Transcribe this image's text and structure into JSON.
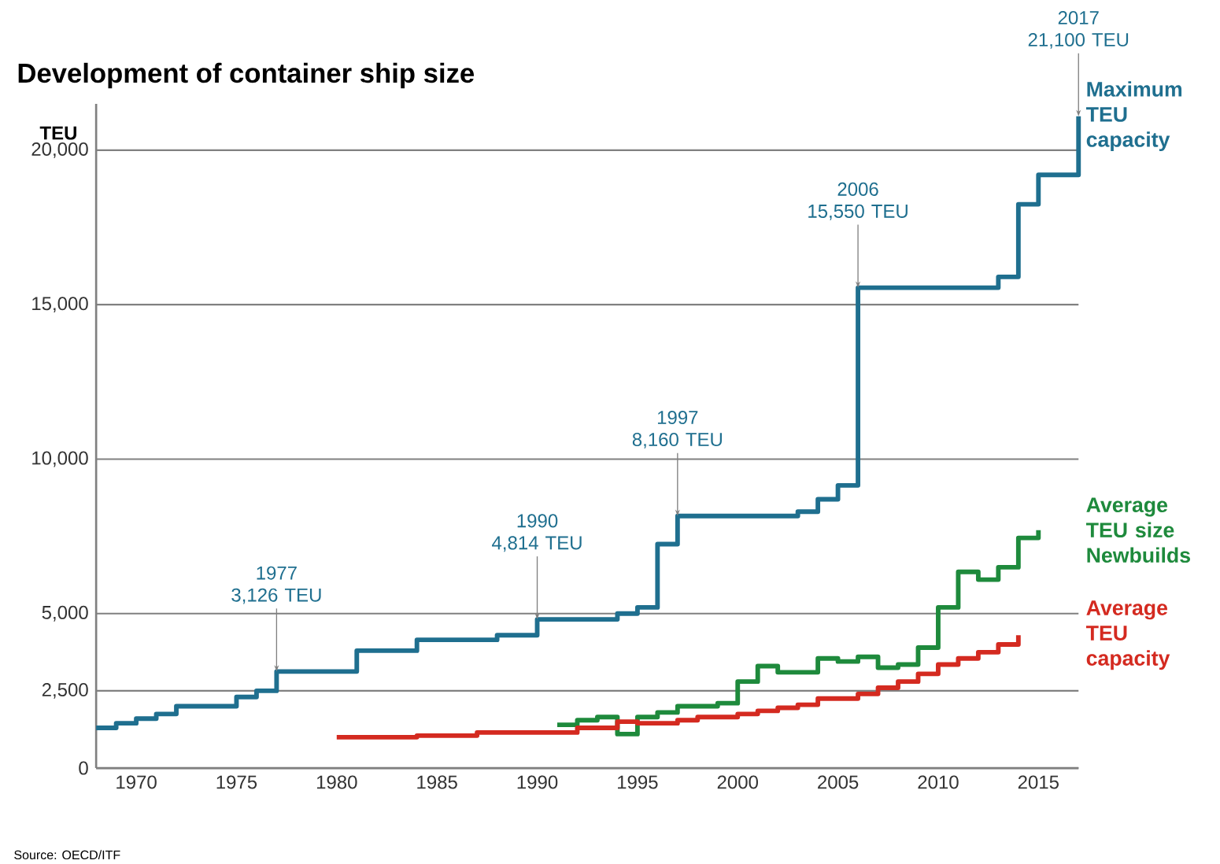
{
  "chart_data": {
    "type": "step",
    "title": "Development of container ship size",
    "ylabel": "TEU",
    "xlim": [
      1968,
      2017
    ],
    "xticks": [
      1970,
      1975,
      1980,
      1985,
      1990,
      1995,
      2000,
      2005,
      2010,
      2015
    ],
    "ylim": [
      0,
      21500
    ],
    "yticks": [
      0,
      {
        "value": 2500,
        "label": "2,500"
      },
      {
        "value": 5000,
        "label": "5,000"
      },
      {
        "value": 10000,
        "label": "10,000"
      },
      {
        "value": 15000,
        "label": "15,000"
      },
      {
        "value": 20000,
        "label": "20,000"
      }
    ],
    "grid": "y",
    "legend": false,
    "marker": "none",
    "line_style": "solid",
    "series": [
      {
        "name": "Maximum TEU capacity",
        "color": "#1f6f8f",
        "x": [
          1968,
          1969,
          1970,
          1971,
          1972,
          1975,
          1976,
          1977,
          1981,
          1984,
          1988,
          1990,
          1994,
          1995,
          1996,
          1997,
          2003,
          2004,
          2005,
          2006,
          2013,
          2014,
          2015,
          2017
        ],
        "values": [
          1300,
          1450,
          1600,
          1750,
          2000,
          2300,
          2500,
          3126,
          3800,
          4150,
          4300,
          4814,
          5000,
          5200,
          7250,
          8160,
          8300,
          8700,
          9150,
          15550,
          15900,
          18250,
          19200,
          21100
        ]
      },
      {
        "name": "Average TEU size Newbuilds",
        "color": "#1e8a3c",
        "x": [
          1991,
          1992,
          1993,
          1994,
          1995,
          1996,
          1997,
          1999,
          2000,
          2001,
          2002,
          2004,
          2005,
          2006,
          2007,
          2008,
          2009,
          2010,
          2011,
          2012,
          2013,
          2014,
          2015
        ],
        "values": [
          1400,
          1550,
          1650,
          1100,
          1650,
          1800,
          2000,
          2100,
          2800,
          3300,
          3100,
          3550,
          3450,
          3600,
          3250,
          3350,
          3900,
          5200,
          6350,
          6100,
          6500,
          7450,
          7700
        ]
      },
      {
        "name": "Average TEU capacity",
        "color": "#d42a20",
        "x": [
          1980,
          1984,
          1987,
          1992,
          1994,
          1995,
          1997,
          1998,
          2000,
          2001,
          2002,
          2003,
          2004,
          2006,
          2007,
          2008,
          2009,
          2010,
          2011,
          2012,
          2013,
          2014
        ],
        "values": [
          1000,
          1050,
          1150,
          1300,
          1500,
          1450,
          1550,
          1650,
          1750,
          1850,
          1950,
          2050,
          2250,
          2400,
          2600,
          2800,
          3050,
          3350,
          3550,
          3750,
          4000,
          4300
        ]
      }
    ],
    "annotations": [
      {
        "text": "1977 3,126 TEU",
        "x": 1977,
        "y": 3126
      },
      {
        "text": "1990 4,814 TEU",
        "x": 1990,
        "y": 4814
      },
      {
        "text": "1997 8,160 TEU",
        "x": 1997,
        "y": 8160
      },
      {
        "text": "2006 15,550 TEU",
        "x": 2006,
        "y": 15550
      },
      {
        "text": "2017 21,100 TEU",
        "x": 2017,
        "y": 21100
      },
      "Source: OECD/ITF"
    ]
  }
}
